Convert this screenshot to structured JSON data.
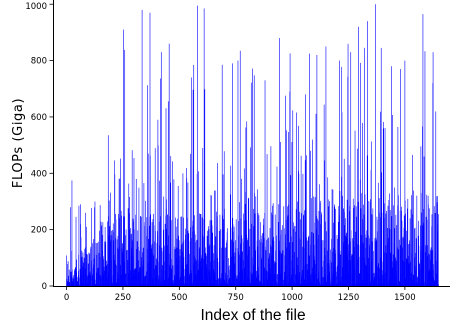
{
  "chart_data": {
    "type": "bar",
    "title": "",
    "xlabel": "Index of the file",
    "ylabel": "FLOPs (Giga)",
    "xlim": [
      -60,
      1700
    ],
    "ylim": [
      0,
      1015
    ],
    "x_ticks": [
      0,
      250,
      500,
      750,
      1000,
      1250,
      1500
    ],
    "y_ticks": [
      0,
      200,
      400,
      600,
      800,
      1000
    ],
    "grid": false,
    "bar_color": "#0000ff",
    "n_bars": 1650,
    "notable_bars": [
      {
        "x": 55,
        "value": 285
      },
      {
        "x": 62,
        "value": 290
      },
      {
        "x": 185,
        "value": 535
      },
      {
        "x": 252,
        "value": 910
      },
      {
        "x": 258,
        "value": 838
      },
      {
        "x": 335,
        "value": 980
      },
      {
        "x": 370,
        "value": 970
      },
      {
        "x": 405,
        "value": 590
      },
      {
        "x": 420,
        "value": 830
      },
      {
        "x": 455,
        "value": 860
      },
      {
        "x": 555,
        "value": 740
      },
      {
        "x": 580,
        "value": 995
      },
      {
        "x": 610,
        "value": 985
      },
      {
        "x": 690,
        "value": 785
      },
      {
        "x": 735,
        "value": 790
      },
      {
        "x": 760,
        "value": 800
      },
      {
        "x": 880,
        "value": 730
      },
      {
        "x": 945,
        "value": 880
      },
      {
        "x": 990,
        "value": 690
      },
      {
        "x": 1060,
        "value": 680
      },
      {
        "x": 1110,
        "value": 820
      },
      {
        "x": 1150,
        "value": 850
      },
      {
        "x": 1210,
        "value": 800
      },
      {
        "x": 1260,
        "value": 830
      },
      {
        "x": 1295,
        "value": 920
      },
      {
        "x": 1335,
        "value": 940
      },
      {
        "x": 1370,
        "value": 1000
      },
      {
        "x": 1395,
        "value": 845
      },
      {
        "x": 1440,
        "value": 780
      },
      {
        "x": 1480,
        "value": 770
      },
      {
        "x": 1500,
        "value": 800
      },
      {
        "x": 1580,
        "value": 965
      },
      {
        "x": 1625,
        "value": 830
      },
      {
        "x": 1640,
        "value": 90
      }
    ]
  }
}
